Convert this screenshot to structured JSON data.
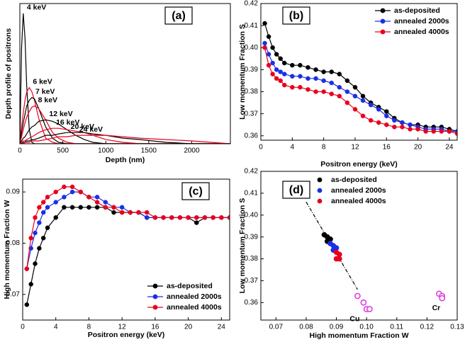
{
  "chart_data": [
    {
      "type": "line",
      "panel_label": "(a)",
      "xlabel": "Depth (nm)",
      "ylabel": "Depth profile of positrons",
      "xlim": [
        0,
        2450
      ],
      "xticks": [
        0,
        500,
        1000,
        1500,
        2000
      ],
      "ylim": [
        0,
        1
      ],
      "x": [
        0,
        20,
        40,
        60,
        80,
        110,
        140,
        170,
        220,
        300,
        380,
        450,
        550,
        650,
        750,
        850,
        1000,
        1200,
        1400,
        1700,
        2000,
        2450
      ],
      "series": [
        {
          "name": "4 keV",
          "color": "#000000",
          "values": [
            0,
            0.68,
            0.93,
            0.75,
            0.41,
            0.1,
            0.01,
            0,
            0,
            0,
            0,
            0,
            0,
            0,
            0,
            0,
            0,
            0,
            0,
            0,
            0,
            0
          ]
        },
        {
          "name": "6 keV",
          "color": "#e8001c",
          "values": [
            0,
            0.12,
            0.22,
            0.31,
            0.37,
            0.4,
            0.37,
            0.31,
            0.18,
            0.04,
            0.01,
            0,
            0,
            0,
            0,
            0,
            0,
            0,
            0,
            0,
            0,
            0
          ]
        },
        {
          "name": "7 keV",
          "color": "#000000",
          "values": [
            0,
            0.08,
            0.15,
            0.21,
            0.27,
            0.31,
            0.33,
            0.32,
            0.25,
            0.12,
            0.04,
            0.01,
            0,
            0,
            0,
            0,
            0,
            0,
            0,
            0,
            0,
            0
          ]
        },
        {
          "name": "8 keV",
          "color": "#e8001c",
          "values": [
            0,
            0.05,
            0.1,
            0.15,
            0.19,
            0.23,
            0.26,
            0.27,
            0.25,
            0.17,
            0.08,
            0.04,
            0.01,
            0,
            0,
            0,
            0,
            0,
            0,
            0,
            0,
            0
          ]
        },
        {
          "name": "12 keV",
          "color": "#000000",
          "values": [
            0,
            0.02,
            0.04,
            0.05,
            0.07,
            0.1,
            0.12,
            0.13,
            0.16,
            0.17,
            0.16,
            0.14,
            0.1,
            0.06,
            0.03,
            0.01,
            0,
            0,
            0,
            0,
            0,
            0
          ]
        },
        {
          "name": "16 keV",
          "color": "#e8001c",
          "values": [
            0,
            0.01,
            0.02,
            0.02,
            0.03,
            0.04,
            0.05,
            0.06,
            0.08,
            0.1,
            0.11,
            0.11,
            0.1,
            0.09,
            0.08,
            0.06,
            0.03,
            0.01,
            0,
            0,
            0,
            0
          ]
        },
        {
          "name": "20 keV",
          "color": "#000000",
          "values": [
            0,
            0,
            0.01,
            0.01,
            0.02,
            0.02,
            0.03,
            0.03,
            0.04,
            0.06,
            0.06,
            0.07,
            0.08,
            0.08,
            0.08,
            0.07,
            0.06,
            0.04,
            0.03,
            0.01,
            0,
            0
          ]
        },
        {
          "name": "24 keV",
          "color": "#e8001c",
          "values": [
            0,
            0,
            0,
            0.01,
            0.01,
            0.01,
            0.02,
            0.02,
            0.02,
            0.03,
            0.04,
            0.05,
            0.05,
            0.06,
            0.06,
            0.06,
            0.06,
            0.05,
            0.04,
            0.03,
            0.02,
            0
          ]
        }
      ]
    },
    {
      "type": "line",
      "markers": true,
      "panel_label": "(b)",
      "xlabel": "Positron energy (keV)",
      "ylabel": "Low momentum Fraction S",
      "xlim": [
        0,
        25
      ],
      "xticks": [
        0,
        4,
        8,
        12,
        16,
        20,
        24
      ],
      "ylim": [
        0.358,
        0.42
      ],
      "yticks": [
        0.36,
        0.37,
        0.38,
        0.39,
        {
          "value": 0.4,
          "label": "0.40"
        },
        0.41,
        0.42
      ],
      "legend": "upper right",
      "x": [
        0.5,
        1,
        1.5,
        2,
        2.5,
        3,
        4,
        5,
        6,
        7,
        8,
        9,
        10,
        11,
        12,
        13,
        14,
        15,
        16,
        17,
        18,
        19,
        20,
        21,
        22,
        23,
        24,
        25
      ],
      "series": [
        {
          "name": "as-deposited",
          "color": "#000000",
          "values": [
            0.411,
            0.405,
            0.4,
            0.397,
            0.395,
            0.393,
            0.392,
            0.392,
            0.391,
            0.39,
            0.389,
            0.389,
            0.388,
            0.385,
            0.382,
            0.378,
            0.375,
            0.373,
            0.371,
            0.368,
            0.366,
            0.365,
            0.365,
            0.364,
            0.364,
            0.364,
            0.363,
            0.362
          ]
        },
        {
          "name": "annealed 2000s",
          "color": "#1a2fe6",
          "values": [
            0.402,
            0.397,
            0.393,
            0.39,
            0.389,
            0.388,
            0.387,
            0.387,
            0.386,
            0.386,
            0.385,
            0.384,
            0.382,
            0.38,
            0.378,
            0.376,
            0.374,
            0.372,
            0.369,
            0.367,
            0.366,
            0.365,
            0.364,
            0.363,
            0.363,
            0.363,
            0.362,
            0.362
          ]
        },
        {
          "name": "annealed 4000s",
          "color": "#e8001c",
          "values": [
            0.4,
            0.392,
            0.388,
            0.386,
            0.385,
            0.383,
            0.382,
            0.382,
            0.381,
            0.38,
            0.38,
            0.379,
            0.378,
            0.375,
            0.372,
            0.369,
            0.367,
            0.366,
            0.365,
            0.364,
            0.364,
            0.363,
            0.363,
            0.362,
            0.362,
            0.362,
            0.362,
            0.361
          ]
        }
      ]
    },
    {
      "type": "line",
      "markers": true,
      "panel_label": "(c)",
      "xlabel": "Positron energy (keV)",
      "ylabel": "High momentum Fraction W",
      "xlim": [
        0,
        25
      ],
      "xticks": [
        0,
        4,
        8,
        12,
        16,
        20,
        24
      ],
      "ylim": [
        0.065,
        0.0925
      ],
      "yticks": [
        0.07,
        0.08,
        0.09
      ],
      "legend": "lower right",
      "x": [
        0.5,
        1,
        1.5,
        2,
        2.5,
        3,
        4,
        5,
        6,
        7,
        8,
        9,
        10,
        11,
        12,
        13,
        14,
        15,
        16,
        17,
        18,
        19,
        20,
        21,
        22,
        23,
        24,
        25
      ],
      "series": [
        {
          "name": "as-deposited",
          "color": "#000000",
          "values": [
            0.068,
            0.072,
            0.076,
            0.079,
            0.081,
            0.083,
            0.085,
            0.087,
            0.087,
            0.087,
            0.087,
            0.087,
            0.087,
            0.086,
            0.086,
            0.086,
            0.086,
            0.085,
            0.085,
            0.085,
            0.085,
            0.085,
            0.085,
            0.084,
            0.085,
            0.085,
            0.085,
            0.085
          ]
        },
        {
          "name": "annealed 2000s",
          "color": "#1a2fe6",
          "values": [
            0.075,
            0.079,
            0.082,
            0.084,
            0.086,
            0.087,
            0.088,
            0.089,
            0.09,
            0.09,
            0.089,
            0.089,
            0.088,
            0.087,
            0.087,
            0.086,
            0.086,
            0.085,
            0.085,
            0.085,
            0.085,
            0.085,
            0.085,
            0.085,
            0.085,
            0.085,
            0.085,
            0.085
          ]
        },
        {
          "name": "annealed 4000s",
          "color": "#e8001c",
          "values": [
            0.075,
            0.081,
            0.085,
            0.087,
            0.088,
            0.089,
            0.09,
            0.091,
            0.091,
            0.09,
            0.089,
            0.088,
            0.087,
            0.087,
            0.086,
            0.086,
            0.086,
            0.086,
            0.085,
            0.085,
            0.085,
            0.085,
            0.085,
            0.085,
            0.085,
            0.085,
            0.085,
            0.085
          ]
        }
      ]
    },
    {
      "type": "scatter",
      "panel_label": "(d)",
      "xlabel": "High momentum Fraction W",
      "ylabel": "Low momentum Fraction S",
      "xlim": [
        0.065,
        0.13
      ],
      "xticks": [
        0.07,
        0.08,
        0.09,
        {
          "value": 0.1,
          "label": "0.10"
        },
        0.11,
        0.12,
        0.13
      ],
      "ylim": [
        0.352,
        0.42
      ],
      "yticks": [
        0.36,
        0.37,
        0.38,
        0.39,
        {
          "value": 0.4,
          "label": "0.40"
        },
        0.41,
        0.42
      ],
      "legend": "upper left",
      "series": [
        {
          "color": "#000000",
          "line_style": "dashdot",
          "x": [
            0.08,
            0.097
          ],
          "values": [
            0.406,
            0.366
          ]
        },
        {
          "name": "as-deposited",
          "color": "#000000",
          "x": [
            0.086,
            0.087,
            0.088,
            0.087
          ],
          "values": [
            0.391,
            0.39,
            0.389,
            0.388
          ]
        },
        {
          "name": "annealed 2000s",
          "color": "#1a2fe6",
          "x": [
            0.088,
            0.089,
            0.09,
            0.089
          ],
          "values": [
            0.387,
            0.386,
            0.385,
            0.384
          ]
        },
        {
          "name": "annealed 4000s",
          "color": "#e8001c",
          "x": [
            0.09,
            0.091,
            0.09,
            0.091
          ],
          "values": [
            0.383,
            0.382,
            0.38,
            0.38
          ]
        },
        {
          "name": "Cu",
          "in_legend": false,
          "color": "#e040e0",
          "x": [
            0.097,
            0.099,
            0.1,
            0.101
          ],
          "values": [
            0.363,
            0.36,
            0.357,
            0.357
          ]
        },
        {
          "name": "Cr",
          "in_legend": false,
          "color": "#e040e0",
          "x": [
            0.124,
            0.125,
            0.125
          ],
          "values": [
            0.364,
            0.363,
            0.362
          ]
        }
      ]
    }
  ]
}
